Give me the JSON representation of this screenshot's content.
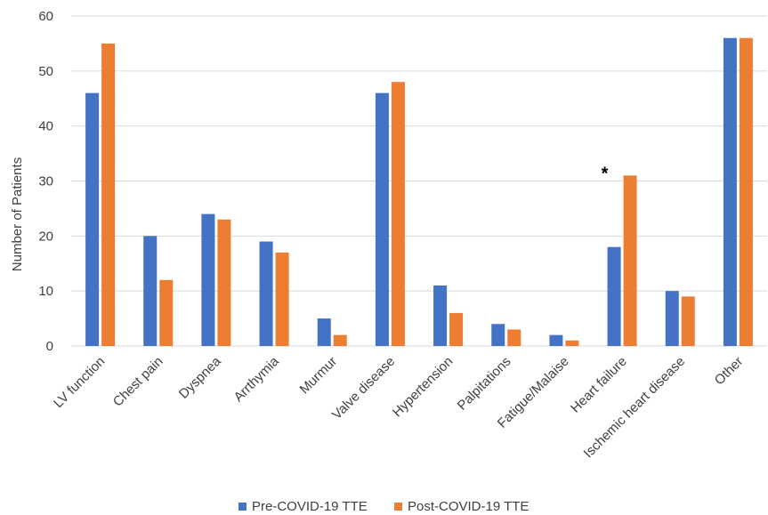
{
  "chart_data": {
    "type": "bar",
    "title": "",
    "xlabel": "",
    "ylabel": "Number of Patients",
    "ylim": [
      0,
      60
    ],
    "yticks": [
      0,
      10,
      20,
      30,
      40,
      50,
      60
    ],
    "grid": true,
    "legend_position": "bottom",
    "categories": [
      "LV function",
      "Chest pain",
      "Dyspnea",
      "Arrthymia",
      "Murmur",
      "Valve disease",
      "Hypertension",
      "Palpitations",
      "Fatigue/Malaise",
      "Heart failure",
      "Ischemic heart disease",
      "Other"
    ],
    "series": [
      {
        "name": "Pre-COVID-19 TTE",
        "color": "#4472c4",
        "values": [
          46,
          20,
          24,
          19,
          5,
          46,
          11,
          4,
          2,
          18,
          10,
          56
        ]
      },
      {
        "name": "Post-COVID-19 TTE",
        "color": "#ed7d31",
        "values": [
          55,
          12,
          23,
          17,
          2,
          48,
          6,
          3,
          1,
          31,
          9,
          56
        ]
      }
    ],
    "annotations": [
      {
        "text": "*",
        "category": "Heart failure",
        "series": "Post-COVID-19 TTE"
      }
    ]
  }
}
